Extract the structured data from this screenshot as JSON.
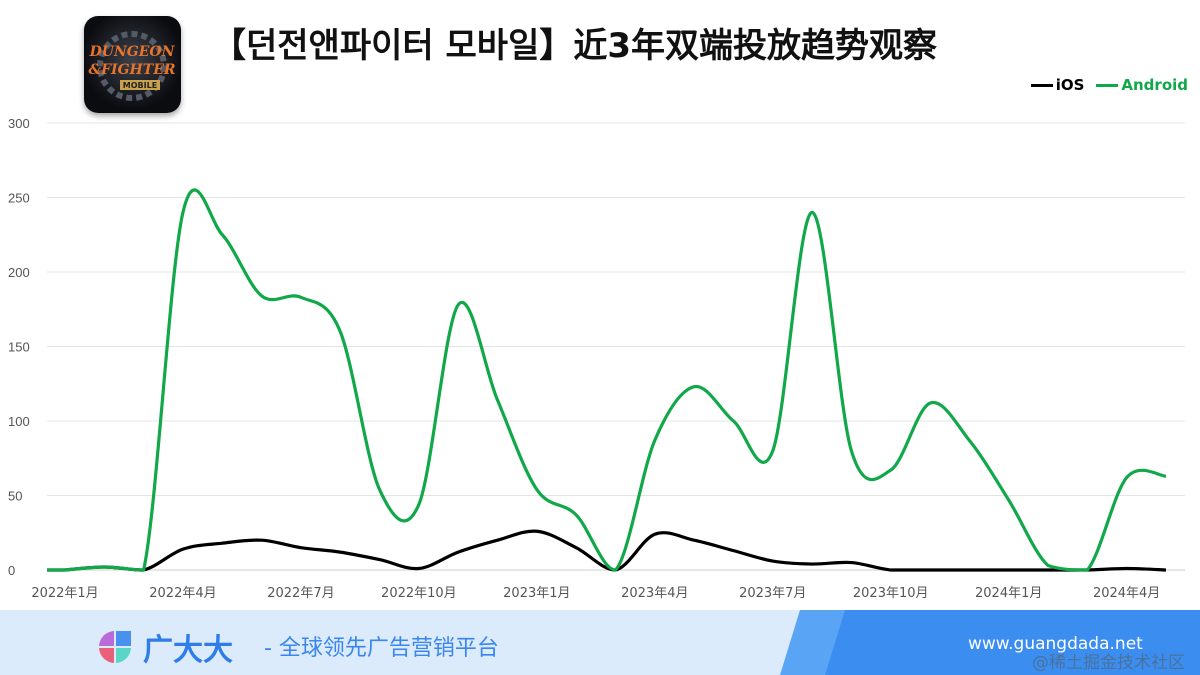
{
  "header": {
    "title": "【던전앤파이터 모바일】近3年双端投放趋势观察",
    "logo_text": "DUNGEON & FIGHTER MOBILE"
  },
  "footer": {
    "brand": "广大大",
    "slogan": "- 全球领先广告营销平台",
    "url": "www.guangdada.net",
    "watermark": "@稀土掘金技术社区"
  },
  "chart_data": {
    "type": "line",
    "title": "",
    "xlabel": "",
    "ylabel": "",
    "ylim": [
      0,
      300
    ],
    "yticks": [
      0,
      50,
      100,
      150,
      200,
      250,
      300
    ],
    "grid": true,
    "legend_position": "top-right",
    "x": [
      "2022-01",
      "2022-02",
      "2022-03",
      "2022-04",
      "2022-05",
      "2022-06",
      "2022-07",
      "2022-08",
      "2022-09",
      "2022-10",
      "2022-11",
      "2022-12",
      "2023-01",
      "2023-02",
      "2023-03",
      "2023-04",
      "2023-05",
      "2023-06",
      "2023-07",
      "2023-08",
      "2023-09",
      "2023-10",
      "2023-11",
      "2023-12",
      "2024-01",
      "2024-02",
      "2024-03",
      "2024-04",
      "2024-05"
    ],
    "xtick_labels": [
      "2022年1月",
      "2022年4月",
      "2022年7月",
      "2022年10月",
      "2023年1月",
      "2023年4月",
      "2023年7月",
      "2023年10月",
      "2024年1月",
      "2024年4月"
    ],
    "series": [
      {
        "name": "iOS",
        "color": "#000000",
        "values": [
          0,
          2,
          0,
          14,
          18,
          20,
          15,
          12,
          7,
          1,
          12,
          20,
          26,
          15,
          0,
          24,
          20,
          13,
          6,
          4,
          5,
          0,
          0,
          0,
          0,
          0,
          0,
          1,
          0
        ]
      },
      {
        "name": "Android",
        "color": "#11a84a",
        "values": [
          0,
          2,
          0,
          240,
          225,
          184,
          183,
          160,
          54,
          44,
          178,
          114,
          54,
          37,
          0,
          87,
          123,
          100,
          80,
          240,
          80,
          67,
          112,
          87,
          47,
          3,
          0,
          62,
          63
        ]
      }
    ]
  }
}
